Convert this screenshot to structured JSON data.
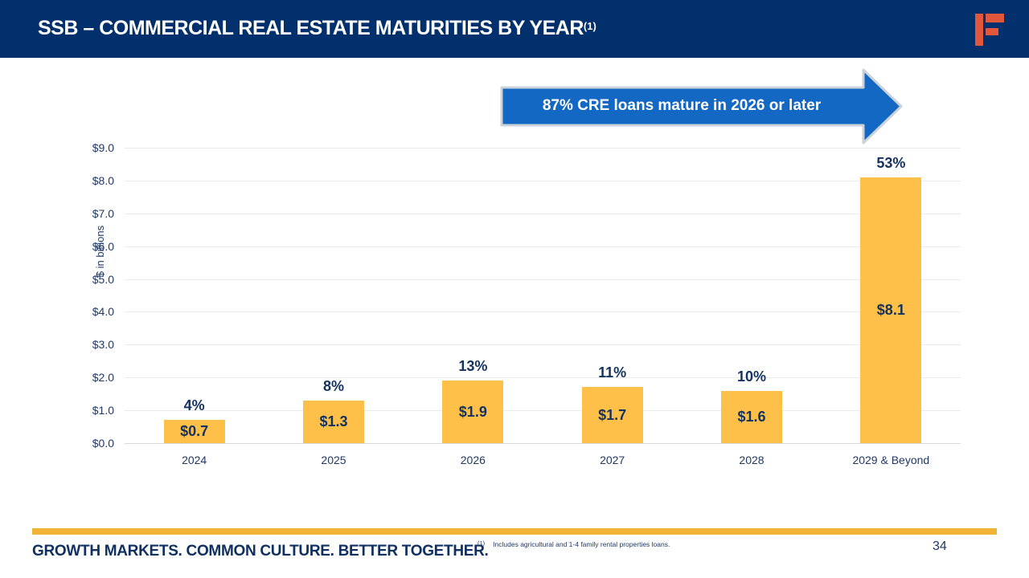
{
  "header": {
    "title": "SSB – COMMERCIAL REAL ESTATE MATURITIES BY YEAR",
    "title_superscript": "(1)",
    "logo": "firstbank-f-logo"
  },
  "callout": {
    "text": "87% CRE loans mature in 2026 or later"
  },
  "chart_data": {
    "type": "bar",
    "title": "",
    "xlabel": "",
    "ylabel": "$ in billions",
    "ylim": [
      0,
      9
    ],
    "grid": true,
    "y_tick_values": [
      0,
      1,
      2,
      3,
      4,
      5,
      6,
      7,
      8,
      9
    ],
    "y_tick_labels": [
      "$0.0",
      "$1.0",
      "$2.0",
      "$3.0",
      "$4.0",
      "$5.0",
      "$6.0",
      "$7.0",
      "$8.0",
      "$9.0"
    ],
    "categories": [
      "2024",
      "2025",
      "2026",
      "2027",
      "2028",
      "2029 & Beyond"
    ],
    "values": [
      0.7,
      1.3,
      1.9,
      1.7,
      1.6,
      8.1
    ],
    "value_labels": [
      "$0.7",
      "$1.3",
      "$1.9",
      "$1.7",
      "$1.6",
      "$8.1"
    ],
    "pct_labels": [
      "4%",
      "8%",
      "13%",
      "11%",
      "10%",
      "53%"
    ],
    "bar_color": "#FFC04A",
    "label_color": "#13325F"
  },
  "footer": {
    "tagline": "GROWTH MARKETS. COMMON  CULTURE. BETTER TOGETHER.",
    "footnote_marker": "(1)",
    "footnote": "Includes  agricultural  and 1-4 family rental  properties  loans.",
    "page_number": "34"
  },
  "colors": {
    "header_navy": "#02306C",
    "logo_orange": "#E2573C",
    "arrow_blue": "#1268C3",
    "arrow_border": "#CBD2D8",
    "bar_yellow": "#FFC04A",
    "footer_gold": "#F2B437",
    "text_navy": "#1F3864"
  }
}
